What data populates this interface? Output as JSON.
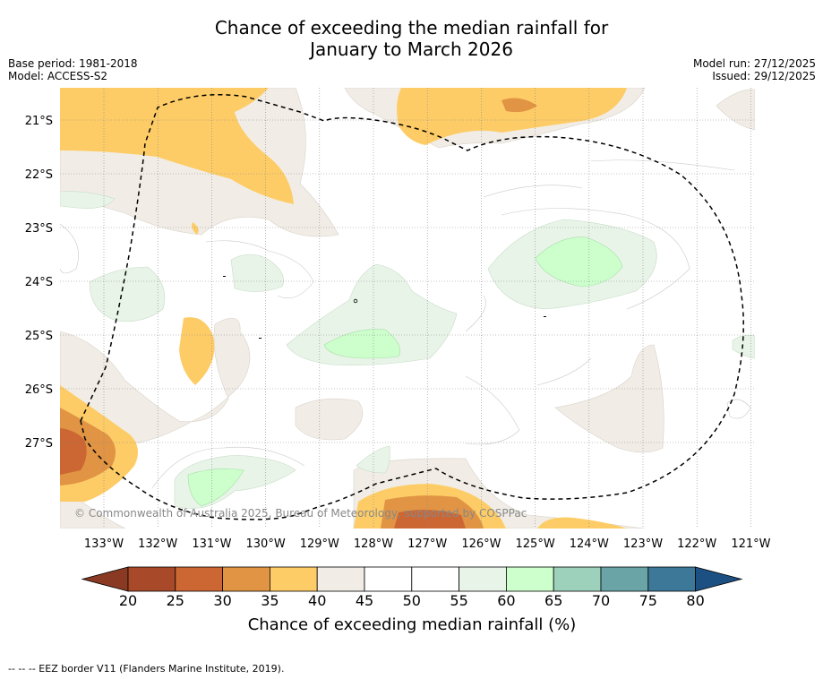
{
  "title": {
    "line1": "Chance of exceeding the median rainfall for",
    "line2": "January to March 2026"
  },
  "meta": {
    "base_period": "Base period: 1981-2018",
    "model": "Model: ACCESS-S2",
    "model_run": "Model run: 27/12/2025",
    "issued": "Issued: 29/12/2025"
  },
  "map": {
    "lat_labels": [
      "21°S",
      "22°S",
      "23°S",
      "24°S",
      "25°S",
      "26°S",
      "27°S"
    ],
    "lon_labels": [
      "133°W",
      "132°W",
      "131°W",
      "130°W",
      "129°W",
      "128°W",
      "127°W",
      "126°W",
      "125°W",
      "124°W",
      "123°W",
      "122°W",
      "121°W"
    ],
    "copyright": "© Commonwealth of Australia 2025, Bureau of Meteorology, supported by COSPPac"
  },
  "colorbar": {
    "ticks": [
      "20",
      "25",
      "30",
      "35",
      "40",
      "45",
      "50",
      "55",
      "60",
      "65",
      "70",
      "75",
      "80"
    ],
    "colors": [
      "#a84a2a",
      "#cc6633",
      "#e09444",
      "#fdcc66",
      "#f1ede6",
      "#ffffff",
      "#ffffff",
      "#e8f4e8",
      "#ccffcc",
      "#9ed1bb",
      "#6aa4a6",
      "#3d7898"
    ],
    "low_extend_color": "#8a3a22",
    "high_extend_color": "#1c4f82",
    "label": "Chance of exceeding median rainfall (%)"
  },
  "footnote": "-- -- -- EEZ border V11 (Flanders Marine Institute, 2019)."
}
